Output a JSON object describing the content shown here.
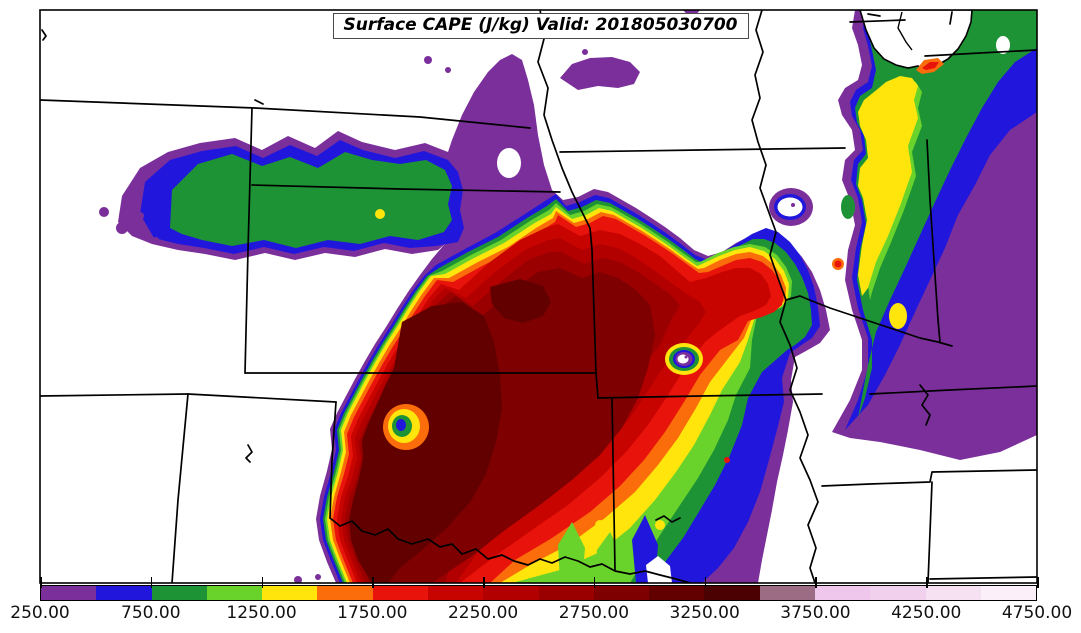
{
  "chart_data": {
    "type": "heatmap",
    "subtype": "filled-contour-weather-map",
    "title": "Surface CAPE (J/kg) Valid: 201805030700",
    "variable": "Surface CAPE",
    "units": "J/kg",
    "valid_time": "201805030700",
    "map_region": "central-united-states-state-outlines",
    "contour_interval": 250,
    "colorbar_range": [
      250,
      4750
    ],
    "approx_field_max_level": 3500,
    "colorbar": {
      "labels": [
        "250.00",
        "750.00",
        "1250.00",
        "1750.00",
        "2250.00",
        "2750.00",
        "3250.00",
        "3750.00",
        "4250.00",
        "4750.00"
      ],
      "label_values": [
        250,
        750,
        1250,
        1750,
        2250,
        2750,
        3250,
        3750,
        4250,
        4750
      ]
    },
    "palette": [
      {
        "level": 250,
        "color": "#7B2F9B"
      },
      {
        "level": 500,
        "color": "#2117DC"
      },
      {
        "level": 750,
        "color": "#1D9335"
      },
      {
        "level": 1000,
        "color": "#69D32B"
      },
      {
        "level": 1250,
        "color": "#FFE50C"
      },
      {
        "level": 1500,
        "color": "#FB6C0B"
      },
      {
        "level": 1750,
        "color": "#E8130B"
      },
      {
        "level": 2000,
        "color": "#C80400"
      },
      {
        "level": 2250,
        "color": "#B20000"
      },
      {
        "level": 2500,
        "color": "#9A0000"
      },
      {
        "level": 2750,
        "color": "#7E0000"
      },
      {
        "level": 3000,
        "color": "#620000"
      },
      {
        "level": 3250,
        "color": "#4B0101"
      },
      {
        "level": 3500,
        "color": "#9C6B84"
      },
      {
        "level": 3750,
        "color": "#EFC6EC"
      },
      {
        "level": 4000,
        "color": "#F1D0EE"
      },
      {
        "level": 4250,
        "color": "#F6E1F3"
      },
      {
        "level": 4500,
        "color": "#FBF0FA"
      }
    ],
    "line_color": "#000000",
    "background_color": "#FFFFFF"
  }
}
